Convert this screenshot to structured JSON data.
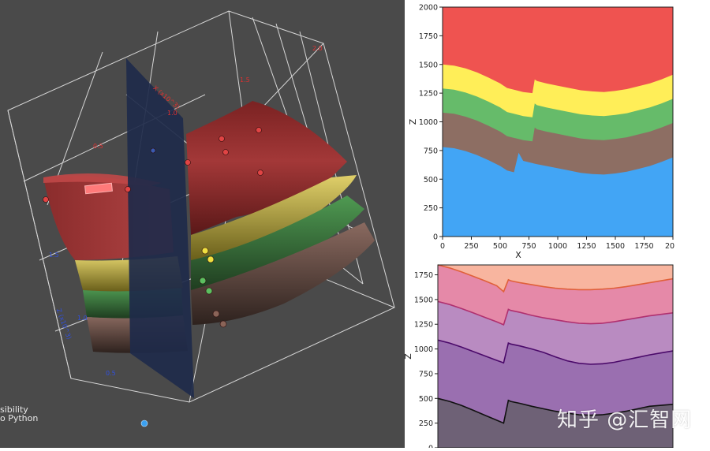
{
  "view3d": {
    "caption_line1": "sibility",
    "caption_line2": "o Python",
    "axis_x_label": "X (x10^3)",
    "axis_z_label": "Z (x10^3)",
    "tick_x_a": "0.5",
    "tick_x_b": "1.0",
    "tick_x_c": "1.5",
    "tick_x_d": "2.0",
    "tick_z_a": "1.5",
    "tick_z_b": "1.0",
    "tick_z_c": "0.5",
    "colors": {
      "background": "#4a4a4a",
      "red_layer": "#9b3333",
      "yellow_layer": "#c9b43d",
      "green_layer": "#3e7a40",
      "brown_layer": "#6b4e45",
      "fault_plane": "#1e2a4a"
    }
  },
  "chart_data": [
    {
      "type": "area",
      "xlabel": "X",
      "ylabel": "Z",
      "xlim": [
        0,
        2000
      ],
      "ylim": [
        0,
        2000
      ],
      "xticks": [
        "0",
        "250",
        "500",
        "750",
        "1000",
        "1250",
        "1500",
        "1750",
        "20"
      ],
      "yticks": [
        "0",
        "250",
        "500",
        "750",
        "1000",
        "1250",
        "1500",
        "1750",
        "2000"
      ],
      "x": [
        0,
        100,
        200,
        300,
        400,
        500,
        560,
        620,
        660,
        700,
        780,
        800,
        820,
        900,
        1000,
        1100,
        1200,
        1300,
        1400,
        1500,
        1600,
        1700,
        1800,
        1900,
        2000
      ],
      "series": [
        {
          "color": "#42a5f5",
          "values": [
            780,
            770,
            745,
            710,
            665,
            615,
            575,
            560,
            730,
            660,
            640,
            635,
            630,
            615,
            595,
            575,
            555,
            545,
            540,
            550,
            565,
            590,
            615,
            650,
            690
          ]
        },
        {
          "color": "#8d6e63",
          "values": [
            1080,
            1070,
            1045,
            1010,
            965,
            915,
            875,
            860,
            850,
            840,
            830,
            950,
            935,
            915,
            895,
            875,
            855,
            845,
            840,
            850,
            865,
            890,
            915,
            950,
            990
          ]
        },
        {
          "color": "#66bb6a",
          "values": [
            1290,
            1280,
            1255,
            1220,
            1175,
            1125,
            1085,
            1070,
            1060,
            1050,
            1040,
            1160,
            1145,
            1125,
            1105,
            1085,
            1065,
            1055,
            1050,
            1060,
            1075,
            1100,
            1125,
            1160,
            1200
          ]
        },
        {
          "color": "#ffee58",
          "values": [
            1500,
            1490,
            1465,
            1430,
            1385,
            1335,
            1295,
            1280,
            1270,
            1260,
            1250,
            1370,
            1355,
            1335,
            1315,
            1295,
            1275,
            1265,
            1260,
            1270,
            1285,
            1310,
            1335,
            1370,
            1410
          ]
        },
        {
          "color": "#ef5350",
          "values": [
            2000,
            2000,
            2000,
            2000,
            2000,
            2000,
            2000,
            2000,
            2000,
            2000,
            2000,
            2000,
            2000,
            2000,
            2000,
            2000,
            2000,
            2000,
            2000,
            2000,
            2000,
            2000,
            2000,
            2000,
            2000
          ]
        }
      ]
    },
    {
      "type": "area",
      "xlabel": "",
      "ylabel": "Z",
      "ylim": [
        0,
        1850
      ],
      "yticks": [
        "0",
        "250",
        "500",
        "750",
        "1000",
        "1250",
        "1500",
        "1750"
      ],
      "x": [
        0,
        100,
        200,
        300,
        400,
        500,
        560,
        600,
        620,
        700,
        800,
        900,
        1000,
        1100,
        1200,
        1300,
        1400,
        1500,
        1600,
        1700,
        1800,
        1900,
        2000
      ],
      "series": [
        {
          "color": "#6e6176",
          "line": "#111111",
          "values": [
            500,
            470,
            430,
            380,
            330,
            280,
            250,
            480,
            470,
            450,
            420,
            395,
            370,
            350,
            335,
            330,
            335,
            350,
            370,
            395,
            420,
            430,
            440
          ]
        },
        {
          "color": "#9a6fb0",
          "line": "#4b0a6a",
          "values": [
            1090,
            1060,
            1020,
            975,
            930,
            885,
            860,
            1060,
            1050,
            1030,
            1000,
            965,
            920,
            880,
            855,
            845,
            850,
            865,
            890,
            915,
            940,
            960,
            980
          ]
        },
        {
          "color": "#b98bc1",
          "line": "#b0306f",
          "values": [
            1480,
            1450,
            1410,
            1365,
            1320,
            1275,
            1245,
            1400,
            1390,
            1370,
            1340,
            1315,
            1295,
            1275,
            1260,
            1255,
            1260,
            1275,
            1295,
            1315,
            1335,
            1350,
            1365
          ]
        },
        {
          "color": "#e589a8",
          "line": "#e0603a",
          "values": [
            1850,
            1820,
            1780,
            1735,
            1690,
            1640,
            1580,
            1700,
            1690,
            1670,
            1650,
            1630,
            1615,
            1605,
            1600,
            1600,
            1605,
            1615,
            1630,
            1650,
            1670,
            1690,
            1710
          ]
        },
        {
          "color": "#f8b59f",
          "values": [
            1850,
            1850,
            1850,
            1850,
            1850,
            1850,
            1850,
            1850,
            1850,
            1850,
            1850,
            1850,
            1850,
            1850,
            1850,
            1850,
            1850,
            1850,
            1850,
            1850,
            1850,
            1850,
            1850
          ]
        }
      ]
    }
  ],
  "watermark": "知乎 @汇智网"
}
